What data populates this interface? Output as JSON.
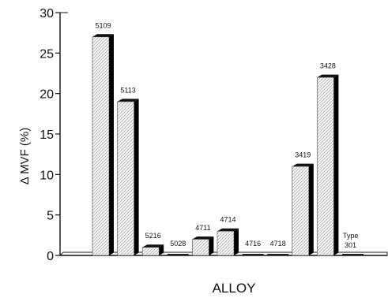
{
  "chart_data": {
    "type": "bar",
    "title": "",
    "xlabel": "ALLOY",
    "ylabel": "Δ MVF (%)",
    "ylim": [
      0,
      30
    ],
    "yticks": [
      0,
      5,
      10,
      15,
      20,
      25,
      30
    ],
    "grid": false,
    "categories": [
      "5109",
      "5113",
      "5216",
      "5028",
      "4711",
      "4714",
      "4716",
      "4718",
      "3419",
      "3428",
      "Type 301"
    ],
    "values": [
      27,
      19,
      1,
      0,
      2,
      3,
      0,
      0,
      11,
      22,
      0
    ],
    "bar_style": "3d-hatched",
    "colors": {
      "bar_face": "#f0f0f0",
      "bar_side": "#000000",
      "axis": "#111111"
    }
  }
}
